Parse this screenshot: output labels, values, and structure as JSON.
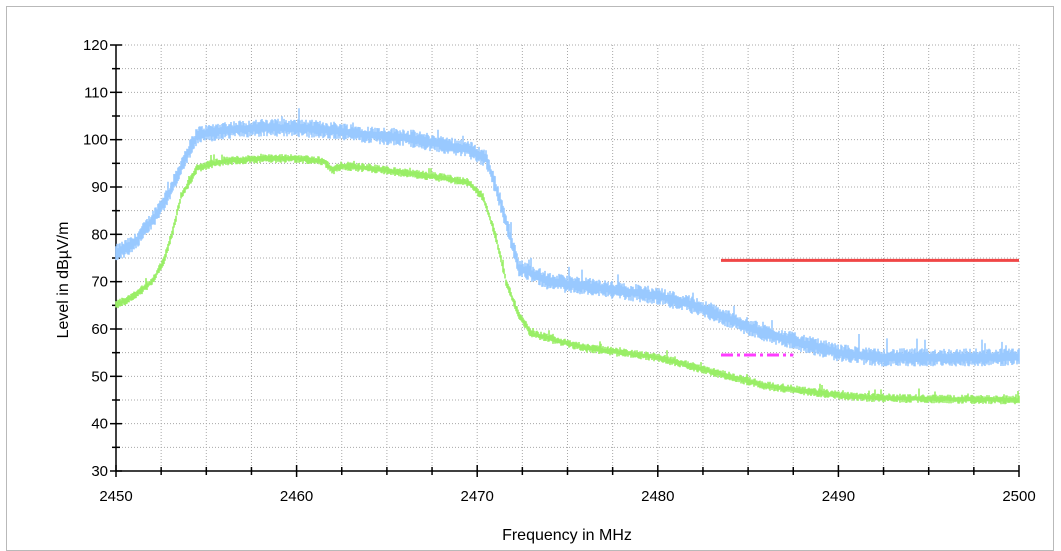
{
  "chart_data": {
    "type": "line",
    "title": "",
    "xlabel": "Frequency in MHz",
    "ylabel": "Level in dBµV/m",
    "xlim": [
      2450,
      2500
    ],
    "ylim": [
      30,
      120
    ],
    "x_ticks": [
      2450,
      2460,
      2470,
      2480,
      2490,
      2500
    ],
    "y_ticks": [
      30,
      40,
      50,
      60,
      70,
      80,
      90,
      100,
      110,
      120
    ],
    "grid": true,
    "legend": "none",
    "series": [
      {
        "color": "#99c9ff",
        "style": "noisy-trace",
        "x": [
          2450,
          2451,
          2452,
          2453,
          2453.8,
          2454.5,
          2456,
          2458,
          2460,
          2462,
          2464,
          2466,
          2468,
          2469.5,
          2470.5,
          2471.2,
          2471.8,
          2472.3,
          2474,
          2476,
          2478,
          2480,
          2482,
          2484,
          2486,
          2488,
          2490,
          2492,
          2494,
          2496,
          2498,
          2500
        ],
        "y": [
          76,
          78,
          83,
          89,
          96,
          101,
          102,
          102.5,
          102.5,
          102,
          101,
          100.5,
          99,
          98,
          96,
          88,
          80,
          73,
          70,
          69,
          68,
          67,
          65,
          62,
          59,
          57,
          55,
          54,
          54,
          54,
          54,
          54
        ],
        "noise": 1.6
      },
      {
        "color": "#99ee66",
        "style": "noisy-trace",
        "x": [
          2450,
          2451,
          2452,
          2452.6,
          2453.1,
          2453.6,
          2454.5,
          2456,
          2458,
          2460,
          2461.5,
          2462,
          2462.5,
          2464,
          2466,
          2468,
          2469.5,
          2470.3,
          2471,
          2471.6,
          2472.3,
          2473,
          2474,
          2476,
          2478,
          2480,
          2482,
          2484,
          2486,
          2488,
          2490,
          2492,
          2494,
          2496,
          2498,
          2500
        ],
        "y": [
          65,
          67,
          70,
          74,
          80,
          88,
          94,
          95.5,
          96,
          96,
          95.5,
          93.5,
          94.5,
          94,
          93,
          92,
          91,
          88,
          80,
          70,
          63,
          59,
          58,
          56,
          55,
          54,
          52,
          50,
          48,
          47,
          46,
          45.5,
          45.3,
          45.2,
          45.1,
          45
        ],
        "noise": 0.8
      },
      {
        "color": "#f04646",
        "style": "solid",
        "x": [
          2483.5,
          2500
        ],
        "y": [
          74.5,
          74.5
        ],
        "noise": 0
      },
      {
        "color": "#ff3cff",
        "style": "dashed",
        "x": [
          2483.5,
          2487.5
        ],
        "y": [
          54.5,
          54.5
        ],
        "noise": 0
      }
    ]
  }
}
